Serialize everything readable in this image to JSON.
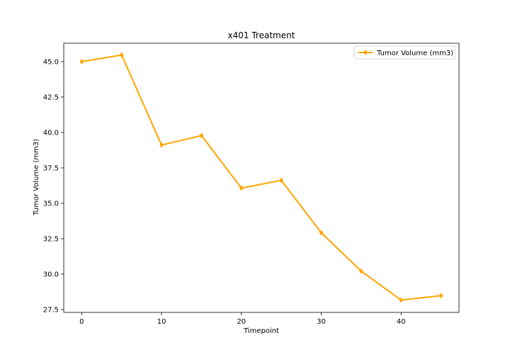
{
  "chart_data": {
    "type": "line",
    "title": "x401 Treatment",
    "xlabel": "Timepoint",
    "ylabel": "Tumor Volume (mm3)",
    "x": [
      0,
      5,
      10,
      15,
      20,
      25,
      30,
      35,
      40,
      45
    ],
    "series": [
      {
        "name": "Tumor Volume (mm3)",
        "color": "#ffa500",
        "marker": "diamond",
        "values": [
          45.0,
          45.47,
          39.11,
          39.78,
          36.07,
          36.62,
          32.92,
          30.21,
          28.17,
          28.48
        ]
      }
    ],
    "xticks": [
      0,
      10,
      20,
      30,
      40
    ],
    "xtick_labels": [
      "0",
      "10",
      "20",
      "30",
      "40"
    ],
    "yticks": [
      27.5,
      30.0,
      32.5,
      35.0,
      37.5,
      40.0,
      42.5,
      45.0
    ],
    "ytick_labels": [
      "27.5",
      "30.0",
      "32.5",
      "35.0",
      "37.5",
      "40.0",
      "42.5",
      "45.0"
    ],
    "xlim": [
      -2.25,
      47.25
    ],
    "ylim": [
      27.3,
      46.3
    ],
    "grid": false,
    "legend_position": "top-right"
  }
}
